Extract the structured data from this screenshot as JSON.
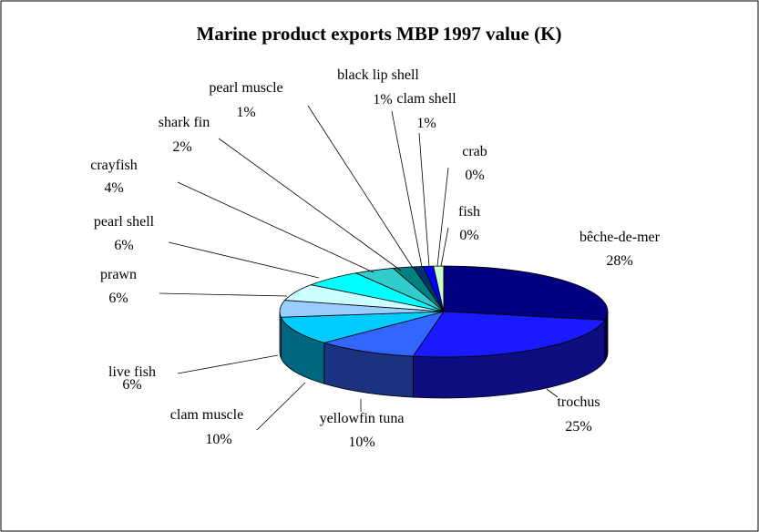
{
  "chart_data": {
    "type": "pie3d",
    "title": "Marine product exports MBP 1997 value (K)",
    "categories": [
      "bêche-de-mer",
      "trochus",
      "yellowfin tuna",
      "clam muscle",
      "live fish",
      "prawn",
      "pearl shell",
      "crayfish",
      "shark fin",
      "pearl muscle",
      "black lip shell",
      "clam shell",
      "crab",
      "fish"
    ],
    "values": [
      28,
      25,
      10,
      10,
      6,
      6,
      6,
      4,
      2,
      1,
      1,
      1,
      0,
      0
    ],
    "value_labels": [
      "28%",
      "25%",
      "10%",
      "10%",
      "6%",
      "6%",
      "6%",
      "4%",
      "2%",
      "1%",
      "1%",
      "1%",
      "0%",
      "0%"
    ],
    "colors": [
      "#000080",
      "#1a1aff",
      "#3366ff",
      "#00ccff",
      "#99ccff",
      "#ccffff",
      "#00ffff",
      "#33cccc",
      "#008080",
      "#003366",
      "#0000ff",
      "#ccffcc",
      "#339966",
      "#006633"
    ]
  }
}
